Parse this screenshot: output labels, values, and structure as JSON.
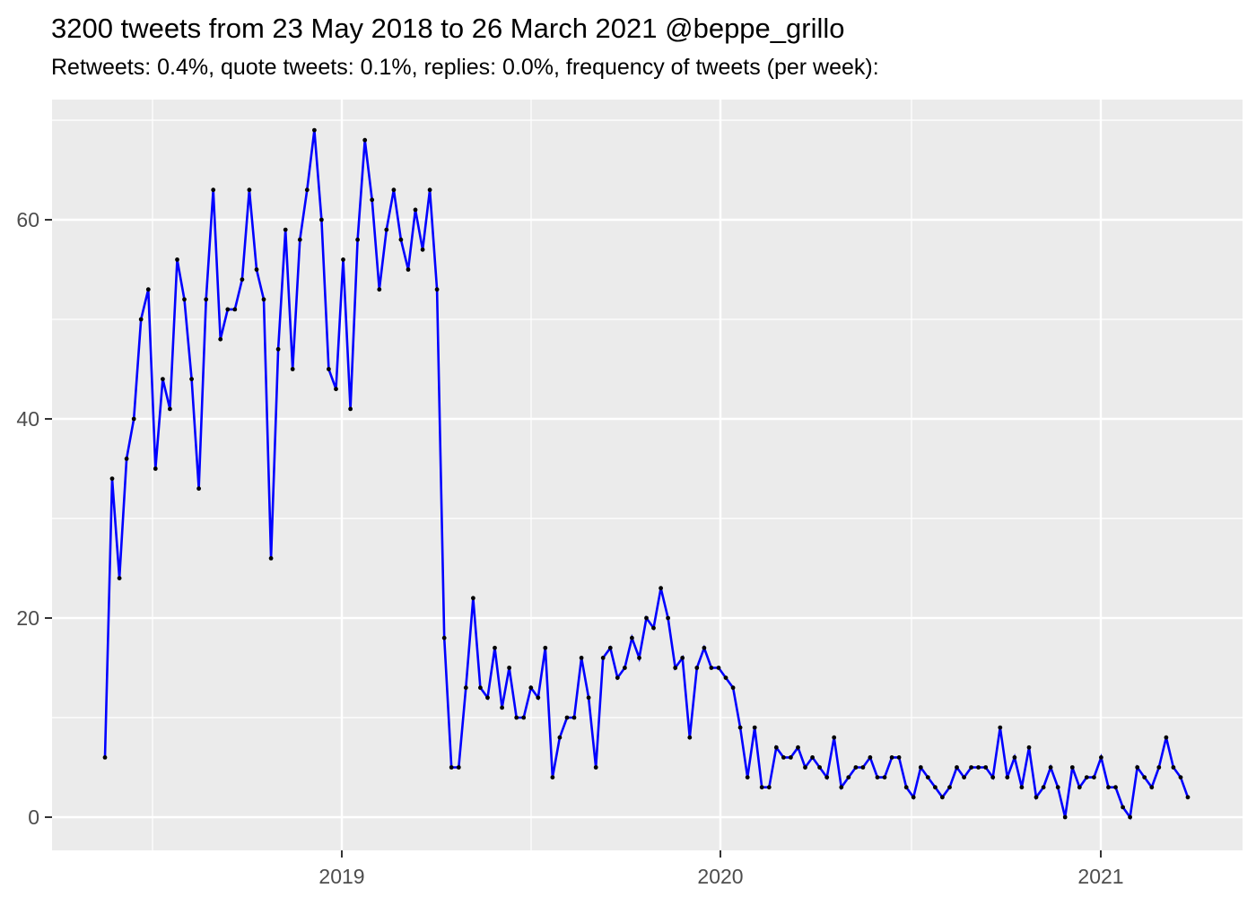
{
  "chart_data": {
    "type": "line",
    "title": "3200 tweets from 23 May 2018 to 26 March 2021 @beppe_grillo",
    "subtitle": "Retweets: 0.4%, quote tweets: 0.1%, replies: 0.0%, frequency of tweets (per week):",
    "series_name": "tweets per week",
    "x_start": "23 May 2018",
    "x_end": "26 March 2021",
    "x_frequency": "weekly",
    "x_tick_labels": [
      "2019",
      "2020",
      "2021"
    ],
    "y_tick_labels": [
      "0",
      "20",
      "40",
      "60"
    ],
    "y_ticks": [
      0,
      20,
      40,
      60
    ],
    "y_minor_ticks": [
      10,
      30,
      50,
      70
    ],
    "ylim": [
      0,
      69
    ],
    "grid": "on",
    "legend": "none",
    "line_color": "#0000FF",
    "point_color": "#000000",
    "panel_bg": "#EBEBEB",
    "grid_color": "#FFFFFF",
    "axis_text_color": "#4D4D4D",
    "tick_mark_color": "#333333",
    "values": [
      6,
      34,
      24,
      36,
      40,
      50,
      53,
      35,
      44,
      41,
      56,
      52,
      44,
      33,
      52,
      63,
      48,
      51,
      51,
      54,
      63,
      55,
      52,
      26,
      47,
      59,
      45,
      58,
      63,
      69,
      60,
      45,
      43,
      56,
      41,
      58,
      68,
      62,
      53,
      59,
      63,
      58,
      55,
      61,
      57,
      63,
      53,
      18,
      5,
      5,
      13,
      22,
      13,
      12,
      17,
      11,
      15,
      10,
      10,
      13,
      12,
      17,
      4,
      8,
      10,
      10,
      16,
      12,
      5,
      16,
      17,
      14,
      15,
      18,
      16,
      20,
      19,
      23,
      20,
      15,
      16,
      8,
      15,
      17,
      15,
      15,
      14,
      13,
      9,
      4,
      9,
      3,
      3,
      7,
      6,
      6,
      7,
      5,
      6,
      5,
      4,
      8,
      3,
      4,
      5,
      5,
      6,
      4,
      4,
      6,
      6,
      3,
      2,
      5,
      4,
      3,
      2,
      3,
      5,
      4,
      5,
      5,
      5,
      4,
      9,
      4,
      6,
      3,
      7,
      2,
      3,
      5,
      3,
      0,
      5,
      3,
      4,
      4,
      6,
      3,
      3,
      1,
      0,
      5,
      4,
      3,
      5,
      8,
      5,
      4,
      2
    ]
  }
}
